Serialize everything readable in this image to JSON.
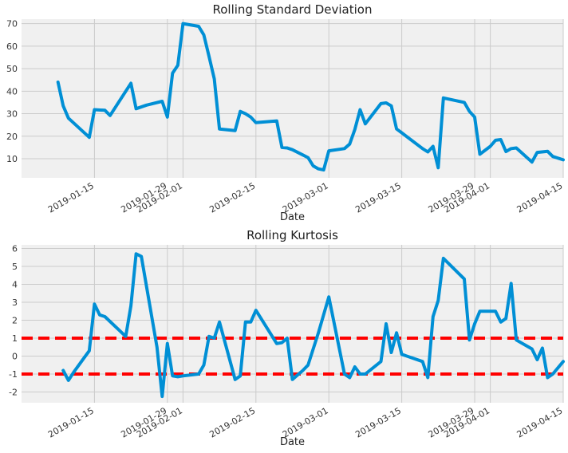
{
  "colors": {
    "background": "#ffffff",
    "plot_background": "#f0f0f0",
    "grid": "#cbcbcb",
    "line": "#008fd5",
    "threshold": "#ff0000"
  },
  "chart_data": [
    {
      "type": "line",
      "title": "Rolling Standard Deviation",
      "xlabel": "Date",
      "ylabel": "",
      "xlim": [
        "2019-01-01",
        "2019-04-15"
      ],
      "ylim": [
        1.5,
        72
      ],
      "x_ticks": [
        "2019-01-15",
        "2019-01-29",
        "2019-02-01",
        "2019-02-15",
        "2019-03-01",
        "2019-03-15",
        "2019-03-29",
        "2019-04-01",
        "2019-04-15"
      ],
      "y_ticks": [
        10,
        20,
        30,
        40,
        50,
        60,
        70
      ],
      "grid": true,
      "legend": "none",
      "series": [
        {
          "points": [
            [
              "2019-01-08",
              44
            ],
            [
              "2019-01-09",
              33.5
            ],
            [
              "2019-01-10",
              28
            ],
            [
              "2019-01-14",
              19.5
            ],
            [
              "2019-01-15",
              31.8
            ],
            [
              "2019-01-17",
              31.5
            ],
            [
              "2019-01-18",
              29.2
            ],
            [
              "2019-01-22",
              43.5
            ],
            [
              "2019-01-23",
              32.2
            ],
            [
              "2019-01-25",
              33.8
            ],
            [
              "2019-01-28",
              35.5
            ],
            [
              "2019-01-29",
              28.5
            ],
            [
              "2019-01-30",
              48
            ],
            [
              "2019-01-31",
              51.5
            ],
            [
              "2019-02-01",
              70
            ],
            [
              "2019-02-04",
              68.8
            ],
            [
              "2019-02-05",
              65
            ],
            [
              "2019-02-06",
              55.5
            ],
            [
              "2019-02-07",
              45.5
            ],
            [
              "2019-02-08",
              23.2
            ],
            [
              "2019-02-11",
              22.5
            ],
            [
              "2019-02-12",
              31
            ],
            [
              "2019-02-13",
              30
            ],
            [
              "2019-02-14",
              28.5
            ],
            [
              "2019-02-15",
              26
            ],
            [
              "2019-02-19",
              26.8
            ],
            [
              "2019-02-20",
              15
            ],
            [
              "2019-02-21",
              14.8
            ],
            [
              "2019-02-22",
              14
            ],
            [
              "2019-02-25",
              10.5
            ],
            [
              "2019-02-26",
              6.8
            ],
            [
              "2019-02-27",
              5.5
            ],
            [
              "2019-02-28",
              5
            ],
            [
              "2019-03-01",
              13.5
            ],
            [
              "2019-03-04",
              14.5
            ],
            [
              "2019-03-05",
              16.5
            ],
            [
              "2019-03-06",
              23
            ],
            [
              "2019-03-07",
              31.8
            ],
            [
              "2019-03-08",
              25.5
            ],
            [
              "2019-03-11",
              34.5
            ],
            [
              "2019-03-12",
              34.8
            ],
            [
              "2019-03-13",
              33.5
            ],
            [
              "2019-03-14",
              23.2
            ],
            [
              "2019-03-15",
              21.5
            ],
            [
              "2019-03-19",
              14.5
            ],
            [
              "2019-03-20",
              13
            ],
            [
              "2019-03-21",
              15.5
            ],
            [
              "2019-03-22",
              6
            ],
            [
              "2019-03-23",
              37
            ],
            [
              "2019-03-27",
              35
            ],
            [
              "2019-03-28",
              31
            ],
            [
              "2019-03-29",
              28.5
            ],
            [
              "2019-03-30",
              12
            ],
            [
              "2019-04-01",
              15.5
            ],
            [
              "2019-04-02",
              18.2
            ],
            [
              "2019-04-03",
              18.5
            ],
            [
              "2019-04-04",
              13.2
            ],
            [
              "2019-04-05",
              14.5
            ],
            [
              "2019-04-06",
              14.8
            ],
            [
              "2019-04-09",
              8.5
            ],
            [
              "2019-04-10",
              12.8
            ],
            [
              "2019-04-12",
              13.3
            ],
            [
              "2019-04-13",
              11
            ],
            [
              "2019-04-15",
              9.5
            ]
          ]
        }
      ]
    },
    {
      "type": "line",
      "title": "Rolling Kurtosis",
      "xlabel": "Date",
      "ylabel": "",
      "xlim": [
        "2019-01-01",
        "2019-04-15"
      ],
      "ylim": [
        -2.6,
        6.2
      ],
      "x_ticks": [
        "2019-01-15",
        "2019-01-29",
        "2019-02-01",
        "2019-02-15",
        "2019-03-01",
        "2019-03-15",
        "2019-03-29",
        "2019-04-01",
        "2019-04-15"
      ],
      "y_ticks": [
        -2,
        -1,
        0,
        1,
        2,
        3,
        4,
        5,
        6
      ],
      "grid": true,
      "legend": "none",
      "reference_lines": [
        {
          "y": 1,
          "style": "dashed"
        },
        {
          "y": -1,
          "style": "dashed"
        }
      ],
      "series": [
        {
          "points": [
            [
              "2019-01-09",
              -0.8
            ],
            [
              "2019-01-10",
              -1.35
            ],
            [
              "2019-01-11",
              -0.9
            ],
            [
              "2019-01-13",
              -0.1
            ],
            [
              "2019-01-14",
              0.3
            ],
            [
              "2019-01-15",
              2.9
            ],
            [
              "2019-01-16",
              2.3
            ],
            [
              "2019-01-17",
              2.2
            ],
            [
              "2019-01-21",
              1.1
            ],
            [
              "2019-01-22",
              2.8
            ],
            [
              "2019-01-23",
              5.7
            ],
            [
              "2019-01-24",
              5.55
            ],
            [
              "2019-01-27",
              0.5
            ],
            [
              "2019-01-28",
              -2.25
            ],
            [
              "2019-01-29",
              0.7
            ],
            [
              "2019-01-30",
              -1.1
            ],
            [
              "2019-01-31",
              -1.15
            ],
            [
              "2019-02-01",
              -1.1
            ],
            [
              "2019-02-04",
              -1.0
            ],
            [
              "2019-02-05",
              -0.5
            ],
            [
              "2019-02-06",
              1.1
            ],
            [
              "2019-02-07",
              1.0
            ],
            [
              "2019-02-08",
              1.9
            ],
            [
              "2019-02-11",
              -1.3
            ],
            [
              "2019-02-12",
              -1.1
            ],
            [
              "2019-02-13",
              1.9
            ],
            [
              "2019-02-14",
              1.9
            ],
            [
              "2019-02-15",
              2.55
            ],
            [
              "2019-02-19",
              0.7
            ],
            [
              "2019-02-20",
              0.75
            ],
            [
              "2019-02-21",
              1.0
            ],
            [
              "2019-02-22",
              -1.3
            ],
            [
              "2019-02-24",
              -0.8
            ],
            [
              "2019-02-25",
              -0.5
            ],
            [
              "2019-02-27",
              1.3
            ],
            [
              "2019-03-01",
              3.3
            ],
            [
              "2019-03-04",
              -1.0
            ],
            [
              "2019-03-05",
              -1.2
            ],
            [
              "2019-03-06",
              -0.6
            ],
            [
              "2019-03-07",
              -1.0
            ],
            [
              "2019-03-08",
              -1.0
            ],
            [
              "2019-03-11",
              -0.3
            ],
            [
              "2019-03-12",
              1.8
            ],
            [
              "2019-03-13",
              0.2
            ],
            [
              "2019-03-14",
              1.3
            ],
            [
              "2019-03-15",
              0.1
            ],
            [
              "2019-03-19",
              -0.3
            ],
            [
              "2019-03-20",
              -1.2
            ],
            [
              "2019-03-21",
              2.2
            ],
            [
              "2019-03-22",
              3.1
            ],
            [
              "2019-03-23",
              5.45
            ],
            [
              "2019-03-27",
              4.3
            ],
            [
              "2019-03-28",
              0.9
            ],
            [
              "2019-03-29",
              1.8
            ],
            [
              "2019-03-30",
              2.5
            ],
            [
              "2019-04-02",
              2.5
            ],
            [
              "2019-04-03",
              1.9
            ],
            [
              "2019-04-04",
              2.1
            ],
            [
              "2019-04-05",
              4.05
            ],
            [
              "2019-04-06",
              0.9
            ],
            [
              "2019-04-09",
              0.4
            ],
            [
              "2019-04-10",
              -0.2
            ],
            [
              "2019-04-11",
              0.45
            ],
            [
              "2019-04-12",
              -1.2
            ],
            [
              "2019-04-13",
              -1.0
            ],
            [
              "2019-04-15",
              -0.3
            ]
          ]
        }
      ]
    }
  ]
}
